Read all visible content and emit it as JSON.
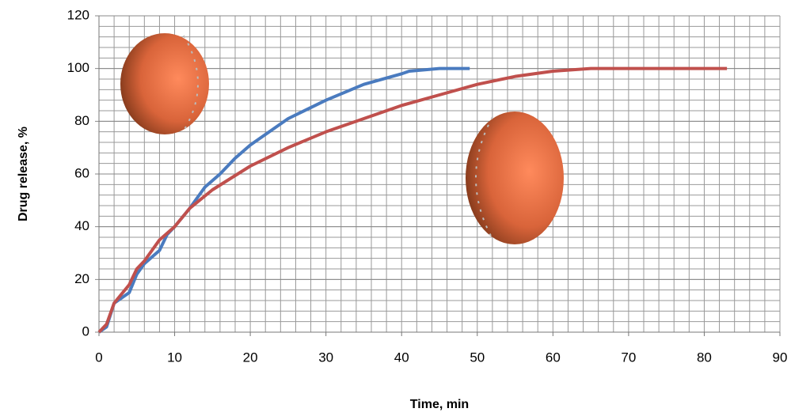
{
  "chart_data": {
    "type": "line",
    "x_label": "Time, min",
    "y_label": "Drug release, %",
    "xlim": [
      0,
      90
    ],
    "xticks": [
      0,
      10,
      20,
      30,
      40,
      50,
      60,
      70,
      80,
      90
    ],
    "ylim": [
      0,
      120
    ],
    "yticks": [
      0,
      20,
      40,
      60,
      80,
      100,
      120
    ],
    "grid": true,
    "minor_xstep": 2,
    "minor_ystep": 4,
    "series": [
      {
        "color": "#4a7bbf",
        "x": [
          0,
          1,
          2,
          4,
          5,
          6,
          8,
          9,
          10,
          12,
          14,
          16,
          18,
          20,
          25,
          30,
          35,
          40,
          41,
          45,
          49
        ],
        "values": [
          0,
          2,
          11,
          15,
          22,
          26,
          31,
          37,
          40,
          47,
          55,
          60,
          66,
          71,
          81,
          88,
          94,
          98,
          99,
          100,
          100
        ]
      },
      {
        "color": "#c0504d",
        "x": [
          0,
          1,
          2,
          4,
          5,
          6,
          8,
          10,
          12,
          15,
          20,
          25,
          30,
          35,
          40,
          45,
          50,
          55,
          60,
          65,
          70,
          83
        ],
        "values": [
          0,
          3,
          11,
          18,
          24,
          27,
          35,
          40,
          47,
          54,
          63,
          70,
          76,
          81,
          86,
          90,
          94,
          97,
          99,
          100,
          100,
          100
        ]
      }
    ]
  }
}
